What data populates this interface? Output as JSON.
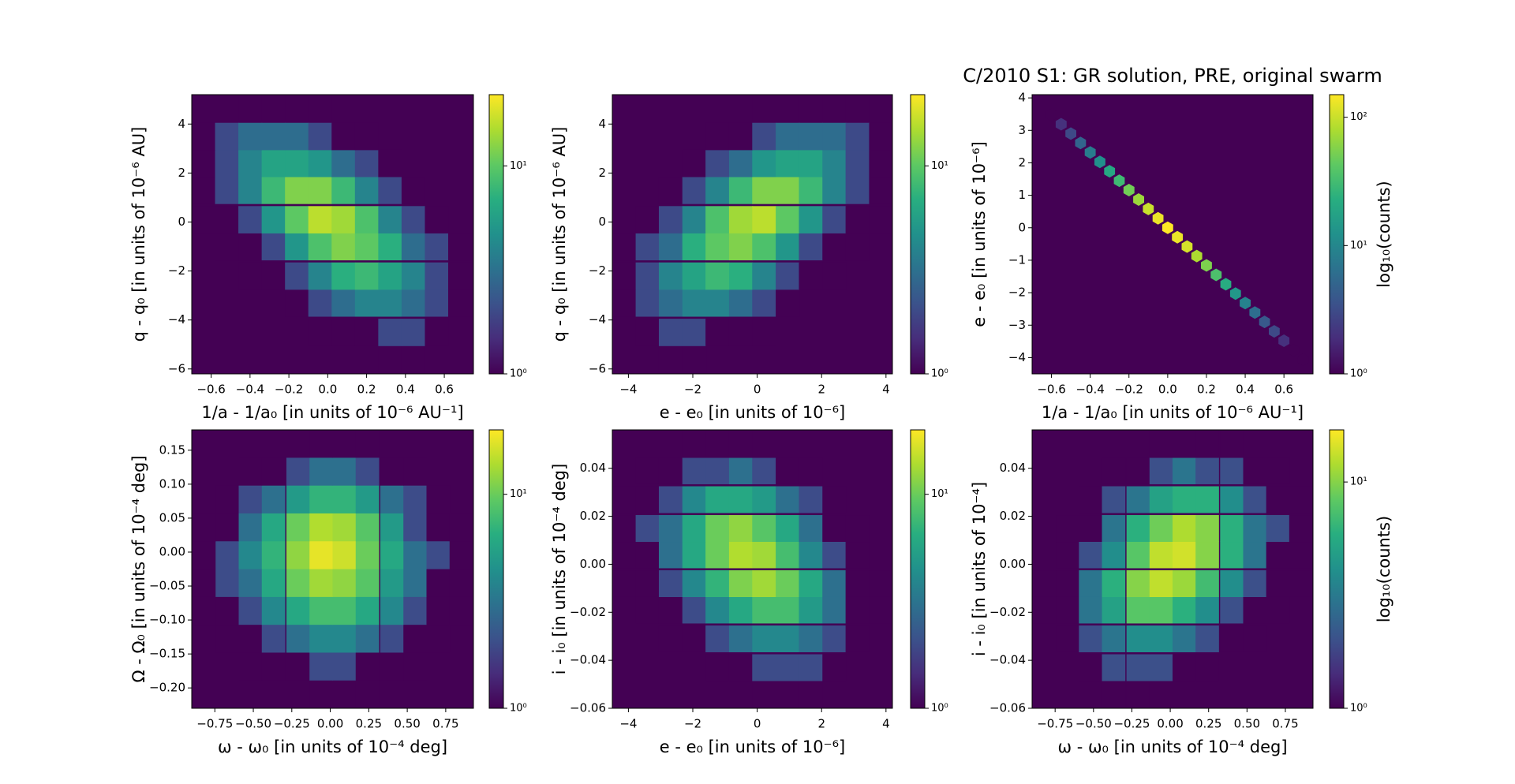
{
  "chart_data": [
    {
      "type": "hexbin",
      "xlabel": "1/a - 1/a₀ [in units of 10⁻⁶ AU⁻¹]",
      "ylabel": "q - q₀ [in units of 10⁻⁶ AU]",
      "colormap": "viridis",
      "background": "#440154",
      "color_scale": "log",
      "xlim": [
        -0.7,
        0.75
      ],
      "xticks": [
        {
          "value": -0.6,
          "label": "−0.6"
        },
        {
          "value": -0.4,
          "label": "−0.4"
        },
        {
          "value": -0.2,
          "label": "−0.2"
        },
        {
          "value": 0,
          "label": "0.0"
        },
        0.2,
        0.4,
        0.6
      ],
      "ylim": [
        -6.2,
        5.2
      ],
      "yticks": [
        {
          "value": -6,
          "label": "−6"
        },
        {
          "value": -4,
          "label": "−4"
        },
        {
          "value": -2,
          "label": "−2"
        },
        0,
        2,
        4
      ],
      "clim": [
        1,
        22
      ],
      "cticks": [
        {
          "value": 1,
          "label": "10⁰"
        },
        {
          "value": 10,
          "label": "10¹"
        }
      ],
      "x": [
        -0.64,
        -0.52,
        -0.4,
        -0.28,
        -0.16,
        -0.04,
        0.08,
        0.2,
        0.32,
        0.44,
        0.56,
        0.68
      ],
      "y": [
        -5.6,
        -4.5,
        -3.3,
        -2.2,
        -1.0,
        0.1,
        1.3,
        2.4,
        3.5,
        4.7
      ],
      "values": [
        [
          null,
          null,
          null,
          null,
          null,
          null,
          null,
          null,
          1,
          1,
          null,
          null
        ],
        [
          null,
          null,
          null,
          null,
          null,
          1,
          1,
          1,
          2,
          2,
          1,
          null
        ],
        [
          null,
          null,
          null,
          null,
          1,
          2,
          3,
          4,
          4,
          3,
          2,
          1
        ],
        [
          null,
          null,
          1,
          1,
          2,
          4,
          7,
          8,
          6,
          4,
          2,
          1
        ],
        [
          null,
          1,
          1,
          2,
          5,
          9,
          12,
          10,
          7,
          3,
          2,
          1
        ],
        [
          1,
          1,
          2,
          5,
          10,
          16,
          14,
          9,
          4,
          2,
          1,
          null
        ],
        [
          1,
          2,
          4,
          8,
          12,
          12,
          8,
          4,
          2,
          1,
          null,
          null
        ],
        [
          1,
          2,
          4,
          6,
          6,
          5,
          3,
          2,
          1,
          null,
          null,
          null
        ],
        [
          1,
          2,
          3,
          3,
          3,
          2,
          1,
          1,
          null,
          null,
          null,
          null
        ],
        [
          1,
          1,
          1,
          1,
          1,
          1,
          null,
          null,
          null,
          null,
          null,
          null
        ]
      ]
    },
    {
      "type": "hexbin",
      "xlabel": "e - e₀ [in units of 10⁻⁶]",
      "ylabel": "q - q₀ [in units of 10⁻⁶ AU]",
      "colormap": "viridis",
      "background": "#440154",
      "color_scale": "log",
      "xlim": [
        -4.5,
        4.2
      ],
      "xticks": [
        {
          "value": -4,
          "label": "−4"
        },
        {
          "value": -2,
          "label": "−2"
        },
        0,
        2,
        4
      ],
      "ylim": [
        -6.2,
        5.2
      ],
      "yticks": [
        {
          "value": -6,
          "label": "−6"
        },
        {
          "value": -4,
          "label": "−4"
        },
        {
          "value": -2,
          "label": "−2"
        },
        0,
        2,
        4
      ],
      "clim": [
        1,
        22
      ],
      "cticks": [
        {
          "value": 1,
          "label": "10⁰"
        },
        {
          "value": 10,
          "label": "10¹"
        }
      ],
      "x": [
        -4.14,
        -3.41,
        -2.69,
        -1.96,
        -1.24,
        -0.51,
        0.21,
        0.94,
        1.66,
        2.39,
        3.11,
        3.84
      ],
      "y": [
        -5.6,
        -4.5,
        -3.3,
        -2.2,
        -1.0,
        0.1,
        1.3,
        2.4,
        3.5,
        4.7
      ],
      "values": [
        [
          null,
          null,
          1,
          1,
          null,
          null,
          null,
          null,
          null,
          null,
          null,
          null
        ],
        [
          null,
          1,
          2,
          2,
          1,
          1,
          1,
          null,
          null,
          null,
          null,
          null
        ],
        [
          1,
          2,
          3,
          4,
          4,
          3,
          2,
          1,
          null,
          null,
          null,
          null
        ],
        [
          1,
          2,
          4,
          6,
          8,
          7,
          4,
          2,
          1,
          1,
          null,
          null
        ],
        [
          1,
          2,
          3,
          7,
          10,
          12,
          9,
          5,
          2,
          1,
          1,
          null
        ],
        [
          null,
          1,
          2,
          4,
          9,
          14,
          16,
          10,
          5,
          2,
          1,
          1
        ],
        [
          null,
          null,
          1,
          2,
          4,
          8,
          12,
          12,
          8,
          4,
          2,
          1
        ],
        [
          null,
          null,
          null,
          1,
          2,
          3,
          5,
          6,
          6,
          4,
          2,
          1
        ],
        [
          null,
          null,
          null,
          null,
          1,
          1,
          2,
          3,
          3,
          3,
          2,
          1
        ],
        [
          null,
          null,
          null,
          null,
          null,
          null,
          1,
          1,
          1,
          1,
          1,
          1
        ]
      ]
    },
    {
      "type": "hexbin",
      "title": "C/2010 S1: GR solution, PRE, original swarm",
      "xlabel": "1/a - 1/a₀ [in units of 10⁻⁶ AU⁻¹]",
      "ylabel": "e - e₀ [in units of 10⁻⁶]",
      "clabel": "log₁₀(counts)",
      "colormap": "viridis",
      "background": "#440154",
      "color_scale": "log",
      "xlim": [
        -0.7,
        0.75
      ],
      "xticks": [
        {
          "value": -0.6,
          "label": "−0.6"
        },
        {
          "value": -0.4,
          "label": "−0.4"
        },
        {
          "value": -0.2,
          "label": "−0.2"
        },
        {
          "value": 0,
          "label": "0.0"
        },
        0.2,
        0.4,
        0.6
      ],
      "ylim": [
        -4.5,
        4.1
      ],
      "yticks": [
        {
          "value": -4,
          "label": "−4"
        },
        {
          "value": -3,
          "label": "−3"
        },
        {
          "value": -2,
          "label": "−2"
        },
        {
          "value": -1,
          "label": "−1"
        },
        0,
        1,
        2,
        3,
        4
      ],
      "clim": [
        1,
        150
      ],
      "cticks": [
        {
          "value": 1,
          "label": "10⁰"
        },
        {
          "value": 10,
          "label": "10¹"
        },
        {
          "value": 100,
          "label": "10²"
        }
      ],
      "x": [
        -0.6,
        -0.55,
        -0.5,
        -0.45,
        -0.4,
        -0.35,
        -0.3,
        -0.25,
        -0.2,
        -0.15,
        -0.1,
        -0.05,
        0,
        0.05,
        0.1,
        0.15,
        0.2,
        0.25,
        0.3,
        0.35,
        0.4,
        0.45,
        0.5,
        0.55,
        0.6,
        0.65,
        0.7
      ],
      "y": [
        3.48,
        3.19,
        2.9,
        2.61,
        2.32,
        2.03,
        1.74,
        1.45,
        1.16,
        0.87,
        0.58,
        0.29,
        0,
        -0.29,
        -0.58,
        -0.87,
        -1.16,
        -1.45,
        -1.74,
        -2.03,
        -2.32,
        -2.61,
        -2.9,
        -3.19,
        -3.48,
        -3.77,
        -4.06
      ],
      "values": [
        1,
        2,
        3,
        5,
        8,
        12,
        20,
        30,
        50,
        70,
        100,
        130,
        150,
        130,
        110,
        80,
        55,
        35,
        22,
        14,
        9,
        6,
        4,
        3,
        2,
        1,
        1
      ]
    },
    {
      "type": "hexbin",
      "xlabel": "ω - ω₀ [in units of 10⁻⁴ deg]",
      "ylabel": "Ω - Ω₀ [in units of 10⁻⁴ deg]",
      "colormap": "viridis",
      "background": "#440154",
      "color_scale": "log",
      "xlim": [
        -0.9,
        0.93
      ],
      "xticks": [
        {
          "value": -0.75,
          "label": "−0.75"
        },
        {
          "value": -0.5,
          "label": "−0.50"
        },
        {
          "value": -0.25,
          "label": "−0.25"
        },
        {
          "value": 0,
          "label": "0.00"
        },
        0.25,
        {
          "value": 0.5,
          "label": "0.50"
        },
        0.75
      ],
      "ylim": [
        -0.23,
        0.18
      ],
      "yticks": [
        {
          "value": -0.2,
          "label": "−0.20"
        },
        {
          "value": -0.15,
          "label": "−0.15"
        },
        {
          "value": -0.1,
          "label": "−0.10"
        },
        {
          "value": -0.05,
          "label": "−0.05"
        },
        {
          "value": 0,
          "label": "0.00"
        },
        0.05,
        {
          "value": 0.1,
          "label": "0.10"
        },
        0.15
      ],
      "clim": [
        1,
        20
      ],
      "cticks": [
        {
          "value": 1,
          "label": "10⁰"
        },
        {
          "value": 10,
          "label": "10¹"
        }
      ],
      "x": [
        -0.82,
        -0.67,
        -0.52,
        -0.37,
        -0.21,
        -0.06,
        0.09,
        0.24,
        0.4,
        0.55,
        0.7,
        0.85
      ],
      "y": [
        -0.209,
        -0.168,
        -0.127,
        -0.086,
        -0.045,
        -0.004,
        0.037,
        0.078,
        0.119,
        0.16
      ],
      "values": [
        [
          null,
          null,
          null,
          null,
          1,
          1,
          1,
          1,
          null,
          null,
          null,
          null
        ],
        [
          null,
          null,
          1,
          1,
          1,
          2,
          2,
          1,
          1,
          1,
          null,
          null
        ],
        [
          null,
          1,
          1,
          2,
          3,
          4,
          4,
          3,
          2,
          1,
          1,
          null
        ],
        [
          1,
          1,
          2,
          4,
          6,
          8,
          8,
          6,
          4,
          2,
          1,
          1
        ],
        [
          1,
          2,
          3,
          6,
          10,
          13,
          12,
          9,
          5,
          3,
          1,
          1
        ],
        [
          1,
          2,
          4,
          7,
          12,
          18,
          16,
          10,
          6,
          3,
          2,
          1
        ],
        [
          1,
          1,
          3,
          6,
          10,
          14,
          13,
          9,
          5,
          2,
          1,
          1
        ],
        [
          null,
          1,
          2,
          3,
          5,
          7,
          7,
          5,
          3,
          2,
          1,
          null
        ],
        [
          null,
          null,
          1,
          1,
          2,
          3,
          3,
          2,
          1,
          1,
          null,
          null
        ],
        [
          null,
          null,
          null,
          null,
          1,
          1,
          1,
          1,
          null,
          null,
          null,
          null
        ]
      ]
    },
    {
      "type": "hexbin",
      "xlabel": "e - e₀ [in units of 10⁻⁶]",
      "ylabel": "i - i₀ [in units of 10⁻⁴ deg]",
      "colormap": "viridis",
      "background": "#440154",
      "color_scale": "log",
      "xlim": [
        -4.5,
        4.2
      ],
      "xticks": [
        {
          "value": -4,
          "label": "−4"
        },
        {
          "value": -2,
          "label": "−2"
        },
        0,
        2,
        4
      ],
      "ylim": [
        -0.06,
        0.056
      ],
      "yticks": [
        {
          "value": -0.06,
          "label": "−0.06"
        },
        {
          "value": -0.04,
          "label": "−0.04"
        },
        {
          "value": -0.02,
          "label": "−0.02"
        },
        {
          "value": 0,
          "label": "0.00"
        },
        0.02,
        0.04
      ],
      "clim": [
        1,
        20
      ],
      "cticks": [
        {
          "value": 1,
          "label": "10⁰"
        },
        {
          "value": 10,
          "label": "10¹"
        }
      ],
      "x": [
        -4.14,
        -3.41,
        -2.69,
        -1.96,
        -1.24,
        -0.51,
        0.21,
        0.94,
        1.66,
        2.39,
        3.11,
        3.84
      ],
      "y": [
        -0.054,
        -0.043,
        -0.031,
        -0.019,
        -0.008,
        0.004,
        0.015,
        0.027,
        0.039,
        0.05
      ],
      "values": [
        [
          null,
          null,
          null,
          null,
          null,
          null,
          1,
          1,
          1,
          null,
          null,
          null
        ],
        [
          null,
          null,
          null,
          null,
          1,
          1,
          2,
          2,
          2,
          1,
          null,
          null
        ],
        [
          null,
          null,
          1,
          1,
          2,
          3,
          4,
          4,
          3,
          2,
          1,
          null
        ],
        [
          null,
          1,
          1,
          2,
          4,
          6,
          8,
          8,
          5,
          3,
          1,
          1
        ],
        [
          1,
          1,
          2,
          4,
          7,
          11,
          13,
          10,
          6,
          3,
          1,
          1
        ],
        [
          1,
          1,
          3,
          6,
          10,
          14,
          13,
          8,
          4,
          2,
          1,
          null
        ],
        [
          1,
          2,
          3,
          6,
          10,
          12,
          9,
          6,
          3,
          1,
          1,
          null
        ],
        [
          1,
          1,
          2,
          4,
          6,
          6,
          5,
          3,
          2,
          1,
          null,
          null
        ],
        [
          null,
          1,
          1,
          2,
          2,
          3,
          2,
          1,
          1,
          null,
          null,
          null
        ],
        [
          null,
          null,
          null,
          1,
          1,
          1,
          1,
          null,
          null,
          null,
          null,
          null
        ]
      ]
    },
    {
      "type": "hexbin",
      "xlabel": "ω - ω₀ [in units of 10⁻⁴ deg]",
      "ylabel": "i - i₀ [in units of 10⁻⁴]",
      "clabel": "log₁₀(counts)",
      "colormap": "viridis",
      "background": "#440154",
      "color_scale": "log",
      "xlim": [
        -0.9,
        0.93
      ],
      "xticks": [
        {
          "value": -0.75,
          "label": "−0.75"
        },
        {
          "value": -0.5,
          "label": "−0.50"
        },
        {
          "value": -0.25,
          "label": "−0.25"
        },
        {
          "value": 0,
          "label": "0.00"
        },
        0.25,
        {
          "value": 0.5,
          "label": "0.50"
        },
        0.75
      ],
      "ylim": [
        -0.06,
        0.056
      ],
      "yticks": [
        {
          "value": -0.06,
          "label": "−0.06"
        },
        {
          "value": -0.04,
          "label": "−0.04"
        },
        {
          "value": -0.02,
          "label": "−0.02"
        },
        {
          "value": 0,
          "label": "0.00"
        },
        0.02,
        0.04
      ],
      "clim": [
        1,
        17
      ],
      "cticks": [
        {
          "value": 1,
          "label": "10⁰"
        },
        {
          "value": 10,
          "label": "10¹"
        }
      ],
      "x": [
        -0.82,
        -0.67,
        -0.52,
        -0.37,
        -0.21,
        -0.06,
        0.09,
        0.24,
        0.4,
        0.55,
        0.7,
        0.85
      ],
      "y": [
        -0.054,
        -0.043,
        -0.031,
        -0.019,
        -0.008,
        0.004,
        0.015,
        0.027,
        0.039,
        0.05
      ],
      "values": [
        [
          null,
          null,
          null,
          1,
          1,
          1,
          null,
          null,
          null,
          null,
          null,
          null
        ],
        [
          null,
          null,
          1,
          2,
          2,
          2,
          1,
          1,
          null,
          null,
          null,
          null
        ],
        [
          null,
          1,
          2,
          3,
          4,
          4,
          3,
          2,
          1,
          1,
          null,
          null
        ],
        [
          1,
          1,
          3,
          5,
          8,
          8,
          6,
          4,
          2,
          1,
          1,
          null
        ],
        [
          1,
          1,
          3,
          6,
          10,
          13,
          11,
          7,
          4,
          2,
          1,
          1
        ],
        [
          null,
          1,
          2,
          4,
          8,
          13,
          14,
          10,
          6,
          3,
          1,
          1
        ],
        [
          null,
          1,
          1,
          3,
          6,
          9,
          12,
          10,
          6,
          3,
          2,
          1
        ],
        [
          null,
          null,
          1,
          2,
          3,
          5,
          6,
          6,
          4,
          2,
          1,
          1
        ],
        [
          null,
          null,
          null,
          1,
          1,
          2,
          3,
          2,
          2,
          1,
          1,
          null
        ],
        [
          null,
          null,
          null,
          null,
          null,
          1,
          1,
          1,
          1,
          null,
          null,
          null
        ]
      ]
    }
  ]
}
